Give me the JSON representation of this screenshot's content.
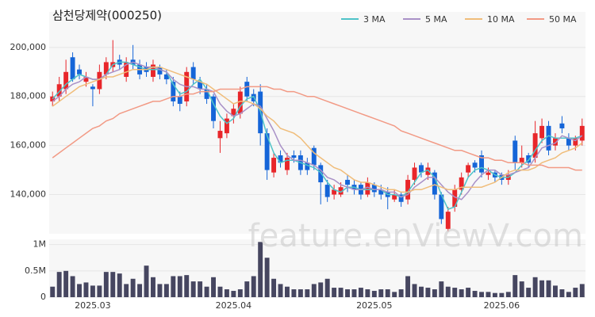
{
  "chart_data": [
    {
      "type": "candlestick",
      "title": "삼천당제약(000250)",
      "open": [
        178000,
        180000,
        183000,
        196000,
        191000,
        186000,
        184000,
        183000,
        189000,
        192000,
        195000,
        188000,
        195000,
        193000,
        192000,
        188000,
        192000,
        189000,
        186000,
        180000,
        178000,
        192000,
        186000,
        183000,
        180000,
        163000,
        165000,
        172000,
        173000,
        186000,
        181000,
        182000,
        165000,
        149000,
        156000,
        150000,
        156000,
        156000,
        153000,
        159000,
        152000,
        144000,
        140000,
        140000,
        146000,
        144000,
        144000,
        140000,
        144000,
        142000,
        141000,
        138000,
        140000,
        138000,
        146000,
        152000,
        148000,
        149000,
        140000,
        126000,
        135000,
        142000,
        149000,
        153000,
        156000,
        148000,
        149000,
        148000,
        146000,
        162000,
        153000,
        156000,
        155000,
        163000,
        168000,
        160000,
        169000,
        163000,
        160000,
        162000
      ],
      "high": [
        182000,
        188000,
        195000,
        198000,
        193000,
        190000,
        185000,
        193000,
        196000,
        203000,
        197000,
        196000,
        201000,
        195000,
        194000,
        195000,
        193000,
        191000,
        188000,
        182000,
        192000,
        194000,
        188000,
        185000,
        181000,
        170000,
        173000,
        177000,
        184000,
        188000,
        183000,
        185000,
        167000,
        157000,
        158000,
        157000,
        158000,
        158000,
        155000,
        160000,
        153000,
        146000,
        144000,
        145000,
        148000,
        146000,
        145000,
        147000,
        145000,
        144000,
        143000,
        142000,
        141000,
        148000,
        153000,
        153000,
        153000,
        150000,
        141000,
        135000,
        144000,
        149000,
        153000,
        154000,
        158000,
        151000,
        150000,
        149000,
        150000,
        164000,
        160000,
        157000,
        170000,
        171000,
        170000,
        165000,
        172000,
        165000,
        164000,
        171000
      ],
      "low": [
        176000,
        178000,
        181000,
        186000,
        187000,
        184000,
        176000,
        181000,
        187000,
        190000,
        191000,
        186000,
        191000,
        187000,
        188000,
        186000,
        187000,
        185000,
        176000,
        174000,
        176000,
        185000,
        181000,
        177000,
        167000,
        157000,
        163000,
        169000,
        171000,
        178000,
        176000,
        160000,
        146000,
        147000,
        151000,
        148000,
        153000,
        148000,
        148000,
        150000,
        136000,
        137000,
        138000,
        139000,
        141000,
        140000,
        138000,
        139000,
        139000,
        138000,
        134000,
        137000,
        135000,
        136000,
        144000,
        147000,
        146000,
        138000,
        128000,
        125000,
        133000,
        140000,
        147000,
        149000,
        147000,
        146000,
        145000,
        144000,
        144000,
        150000,
        151000,
        151000,
        153000,
        161000,
        156000,
        158000,
        165000,
        158000,
        158000,
        160000
      ],
      "close": [
        180000,
        185000,
        190000,
        187000,
        189000,
        188000,
        183000,
        190000,
        194000,
        194000,
        193000,
        194000,
        193000,
        189000,
        190000,
        193000,
        189000,
        187000,
        178000,
        177000,
        190000,
        187000,
        183000,
        179000,
        170000,
        166000,
        171000,
        175000,
        182000,
        180000,
        178000,
        165000,
        150000,
        155000,
        153000,
        155000,
        155000,
        150000,
        150000,
        152000,
        145000,
        139000,
        142000,
        143000,
        144000,
        142000,
        140000,
        145000,
        141000,
        140000,
        139000,
        140000,
        137000,
        146000,
        151000,
        149000,
        151000,
        140000,
        130000,
        133000,
        142000,
        147000,
        152000,
        151000,
        149000,
        149000,
        147000,
        146000,
        148000,
        153000,
        155000,
        153000,
        165000,
        168000,
        158000,
        163000,
        167000,
        160000,
        163000,
        168000
      ],
      "up_color": "#e8262a",
      "down_color": "#1565d8",
      "series": [
        {
          "name": "3 MA",
          "color": "#4fc3c8",
          "values": [
            179000,
            182000,
            185000,
            187000,
            189000,
            188000,
            187000,
            187000,
            189000,
            193000,
            194000,
            194000,
            193000,
            192000,
            191000,
            191000,
            191000,
            190000,
            185000,
            181000,
            182000,
            185000,
            187000,
            183000,
            177000,
            172000,
            169000,
            171000,
            176000,
            179000,
            180000,
            174000,
            164000,
            157000,
            153000,
            154000,
            154000,
            153000,
            152000,
            151000,
            149000,
            145000,
            142000,
            141000,
            143000,
            143000,
            142000,
            142000,
            142000,
            142000,
            140000,
            140000,
            139000,
            141000,
            145000,
            149000,
            150000,
            147000,
            140000,
            134000,
            135000,
            141000,
            147000,
            150000,
            151000,
            150000,
            148000,
            147000,
            147000,
            149000,
            152000,
            154000,
            158000,
            162000,
            164000,
            163000,
            163000,
            163000,
            163000,
            164000
          ]
        },
        {
          "name": "5 MA",
          "color": "#a991c7",
          "values": [
            178000,
            180000,
            183000,
            185000,
            186000,
            188000,
            187000,
            187000,
            189000,
            190000,
            191000,
            193000,
            194000,
            193000,
            192000,
            192000,
            191000,
            190000,
            187000,
            185000,
            184000,
            184000,
            183000,
            183000,
            182000,
            177000,
            174000,
            172000,
            173000,
            175000,
            177000,
            176000,
            171000,
            166000,
            160000,
            156000,
            154000,
            154000,
            153000,
            152000,
            150000,
            147000,
            146000,
            144000,
            143000,
            142000,
            142000,
            143000,
            142000,
            142000,
            141000,
            141000,
            139000,
            140000,
            143000,
            145000,
            147000,
            147000,
            144000,
            141000,
            139000,
            138000,
            141000,
            145000,
            148000,
            150000,
            150000,
            148000,
            148000,
            149000,
            150000,
            151000,
            155000,
            159000,
            160000,
            161000,
            164000,
            163000,
            162000,
            164000
          ]
        },
        {
          "name": "10 MA",
          "color": "#f0bd7a",
          "values": [
            176000,
            178000,
            180000,
            182000,
            184000,
            185000,
            186000,
            187000,
            188000,
            188000,
            189000,
            190000,
            191000,
            191000,
            191000,
            192000,
            192000,
            191000,
            190000,
            189000,
            188000,
            187000,
            186000,
            185000,
            183000,
            181000,
            179000,
            177000,
            178000,
            178000,
            177000,
            175000,
            172000,
            170000,
            167000,
            166000,
            165000,
            163000,
            160000,
            157000,
            155000,
            153000,
            151000,
            150000,
            148000,
            146000,
            145000,
            145000,
            144000,
            143000,
            142000,
            142000,
            141000,
            141000,
            142000,
            142000,
            143000,
            144000,
            143000,
            142000,
            142000,
            143000,
            143000,
            143000,
            143000,
            144000,
            145000,
            147000,
            149000,
            150000,
            150000,
            150000,
            151000,
            153000,
            154000,
            155000,
            157000,
            158000,
            159000,
            161000
          ]
        },
        {
          "name": "50 MA",
          "color": "#f29a85",
          "values": [
            155000,
            157000,
            159000,
            161000,
            163000,
            165000,
            167000,
            168000,
            170000,
            171000,
            173000,
            174000,
            175000,
            176000,
            177000,
            178000,
            178000,
            179000,
            180000,
            180000,
            181000,
            181000,
            182000,
            182000,
            182000,
            183000,
            183000,
            183000,
            183000,
            184000,
            184000,
            184000,
            184000,
            183000,
            183000,
            182000,
            182000,
            181000,
            180000,
            180000,
            179000,
            178000,
            177000,
            176000,
            175000,
            174000,
            173000,
            172000,
            171000,
            170000,
            169000,
            168000,
            166000,
            165000,
            164000,
            163000,
            162000,
            161000,
            160000,
            159000,
            158000,
            158000,
            157000,
            156000,
            155000,
            155000,
            154000,
            154000,
            153000,
            153000,
            153000,
            152000,
            152000,
            152000,
            151000,
            151000,
            151000,
            151000,
            150000,
            150000
          ]
        }
      ],
      "ylim": [
        124000,
        214500
      ],
      "yticks": [
        {
          "value": 140000,
          "label": "140,000"
        },
        {
          "value": 160000,
          "label": "160,000"
        },
        {
          "value": 180000,
          "label": "180,000"
        },
        {
          "value": 200000,
          "label": "200,000"
        }
      ],
      "grid": true
    },
    {
      "type": "bar",
      "categories": [
        null,
        null,
        null,
        null,
        null,
        null,
        "2025.03",
        null,
        null,
        null,
        null,
        null,
        null,
        null,
        null,
        null,
        null,
        null,
        null,
        null,
        null,
        null,
        null,
        null,
        null,
        null,
        null,
        "2025.04",
        null,
        null,
        null,
        null,
        null,
        null,
        null,
        null,
        null,
        null,
        null,
        null,
        null,
        null,
        null,
        null,
        null,
        null,
        null,
        null,
        "2025.05",
        null,
        null,
        null,
        null,
        null,
        null,
        null,
        null,
        null,
        null,
        null,
        null,
        null,
        null,
        null,
        null,
        null,
        null,
        "2025.06",
        null,
        null,
        null,
        null,
        null,
        null,
        null,
        null,
        null,
        null,
        null,
        null
      ],
      "values": [
        200000,
        480000,
        500000,
        400000,
        250000,
        280000,
        220000,
        220000,
        480000,
        480000,
        450000,
        250000,
        350000,
        250000,
        600000,
        380000,
        250000,
        250000,
        400000,
        400000,
        420000,
        300000,
        300000,
        200000,
        380000,
        200000,
        150000,
        120000,
        150000,
        300000,
        400000,
        1050000,
        750000,
        350000,
        250000,
        200000,
        150000,
        150000,
        150000,
        250000,
        280000,
        350000,
        180000,
        180000,
        150000,
        150000,
        180000,
        150000,
        120000,
        150000,
        150000,
        100000,
        150000,
        400000,
        250000,
        200000,
        180000,
        150000,
        300000,
        200000,
        180000,
        150000,
        180000,
        120000,
        100000,
        100000,
        80000,
        80000,
        100000,
        420000,
        300000,
        180000,
        380000,
        320000,
        320000,
        220000,
        150000,
        100000,
        180000,
        250000
      ],
      "color": "#464660",
      "ylim": [
        0,
        1100000
      ],
      "yticks": [
        0,
        {
          "value": 500000,
          "label": "0.5M"
        },
        {
          "value": 1000000,
          "label": "1M"
        }
      ]
    }
  ],
  "watermark": "feature.enViewV.com"
}
